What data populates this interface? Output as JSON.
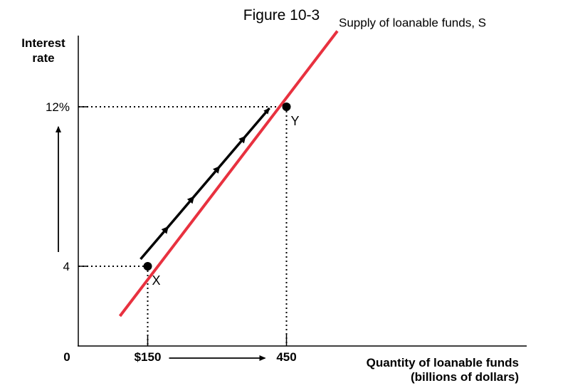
{
  "figure_title": "Figure 10-3",
  "chart_data": {
    "type": "line",
    "title": "Figure 10-3",
    "xlabel": "Quantity of loanable funds",
    "xlabel_sub": "(billions of dollars)",
    "ylabel_line1": "Interest",
    "ylabel_line2": "rate",
    "origin_label": "0",
    "x_ticks": [
      {
        "value": 150,
        "label": "$150"
      },
      {
        "value": 450,
        "label": "450"
      }
    ],
    "y_ticks": [
      {
        "value": 4,
        "label": "4"
      },
      {
        "value": 12,
        "label": "12%"
      }
    ],
    "xlim": [
      0,
      960
    ],
    "ylim": [
      0,
      16
    ],
    "grid": false,
    "series": [
      {
        "name": "Supply of loanable funds, S",
        "color": "#e8313f",
        "x": [
          90,
          560
        ],
        "y": [
          1.5,
          15.8
        ]
      }
    ],
    "points": [
      {
        "label": "X",
        "x": 150,
        "y": 4
      },
      {
        "label": "Y",
        "x": 450,
        "y": 12
      }
    ],
    "movement": {
      "from": [
        150,
        4
      ],
      "to": [
        450,
        12
      ],
      "color": "#000000"
    },
    "annotations": [
      {
        "type": "arrow",
        "axis": "x",
        "from": 150,
        "to": 450
      },
      {
        "type": "arrow",
        "axis": "y",
        "from": 4,
        "to": 12
      }
    ]
  }
}
